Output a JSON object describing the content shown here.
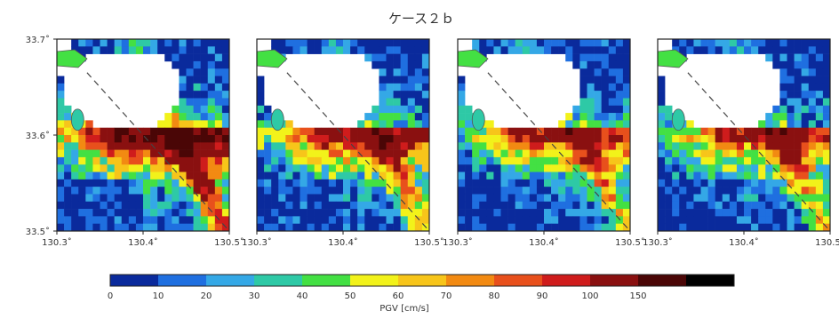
{
  "chart_data": {
    "type": "heatmap",
    "title": "ケース２ｂ",
    "panel_count": 4,
    "y_ticks": [
      {
        "value": 33.7,
        "label": "33.7˚"
      },
      {
        "value": 33.6,
        "label": "33.6˚"
      },
      {
        "value": 33.5,
        "label": "33.5˚"
      }
    ],
    "x_ticks": [
      {
        "value": 130.3,
        "label": "130.3˚"
      },
      {
        "value": 130.4,
        "label": "130.4˚"
      },
      {
        "value": 130.5,
        "label": "130.5˚"
      }
    ],
    "xlim": [
      130.3,
      130.5
    ],
    "ylim": [
      33.5,
      33.7
    ],
    "fault_line": [
      [
        130.335,
        33.665
      ],
      [
        130.5,
        33.5
      ]
    ],
    "colorbar": {
      "label": "PGV [cm/s]",
      "ticks": [
        "0",
        "10",
        "20",
        "30",
        "40",
        "50",
        "60",
        "70",
        "80",
        "90",
        "100",
        "150"
      ],
      "colors": [
        "#0a2a9c",
        "#1f6fe0",
        "#34a8e6",
        "#2ec9a6",
        "#43e043",
        "#f2f21a",
        "#f7c51a",
        "#f28a12",
        "#e8501c",
        "#cf1c1c",
        "#8a1010",
        "#4a0606",
        "#000000"
      ]
    },
    "land_color": "#ffffff",
    "sea_outline_color": "#555555"
  }
}
